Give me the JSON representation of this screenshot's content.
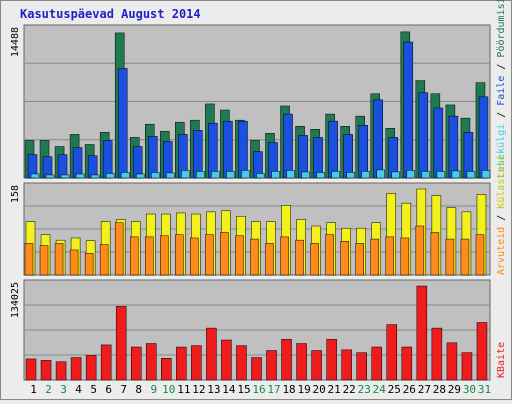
{
  "title": "Kasutuspäevad August 2014",
  "colors": {
    "pageBg": "#ececec",
    "plotBg": "#c0c0c0",
    "grid": "#888888",
    "title": "#1f1fc8",
    "hits": "#1f7a50",
    "files": "#1a4fe0",
    "pages": "#44ccee",
    "visits": "#f2f21a",
    "sites": "#ff8c1a",
    "kbytes": "#ee1c1c",
    "weekday": "#000000",
    "weekend": "#17864a"
  },
  "legend": {
    "hits": "Pöördumisi",
    "files": "Faile",
    "pages": "Lehekülgi",
    "visits": "Külastusi",
    "sites": "Arvuteid",
    "kbytes": "KBaite",
    "sep": " / "
  },
  "chart_data": [
    {
      "type": "bar",
      "name": "hits-files-pages",
      "x": [
        1,
        2,
        3,
        4,
        5,
        6,
        7,
        8,
        9,
        10,
        11,
        12,
        13,
        14,
        15,
        16,
        17,
        18,
        19,
        20,
        21,
        22,
        23,
        24,
        25,
        26,
        27,
        28,
        29,
        30,
        31
      ],
      "weekend_days": [
        2,
        3,
        9,
        10,
        16,
        17,
        23,
        24,
        30,
        31
      ],
      "ymax": 14488,
      "ytick_label": "14488",
      "series": [
        {
          "name": "Pöördumisi",
          "values": [
            3700,
            3700,
            3100,
            4300,
            3300,
            4500,
            14300,
            4000,
            5300,
            4600,
            5500,
            5700,
            7300,
            6700,
            5700,
            3700,
            4400,
            7100,
            5100,
            4800,
            6300,
            5100,
            6100,
            8300,
            4900,
            14400,
            9600,
            8300,
            7200,
            5900,
            9400
          ]
        },
        {
          "name": "Faile",
          "values": [
            2300,
            2100,
            2300,
            3000,
            2200,
            3700,
            10800,
            3100,
            4100,
            3600,
            4300,
            4700,
            5400,
            5600,
            5600,
            2600,
            3500,
            6300,
            4200,
            4000,
            5600,
            4300,
            5200,
            7700,
            4000,
            13400,
            8400,
            6900,
            6100,
            4500,
            8000
          ]
        },
        {
          "name": "Lehekülgi",
          "values": [
            400,
            300,
            300,
            400,
            300,
            450,
            550,
            400,
            550,
            500,
            750,
            650,
            650,
            650,
            750,
            450,
            650,
            750,
            600,
            550,
            650,
            550,
            650,
            800,
            600,
            750,
            650,
            650,
            700,
            650,
            750
          ]
        }
      ]
    },
    {
      "type": "bar",
      "name": "visits-sites",
      "x": [
        1,
        2,
        3,
        4,
        5,
        6,
        7,
        8,
        9,
        10,
        11,
        12,
        13,
        14,
        15,
        16,
        17,
        18,
        19,
        20,
        21,
        22,
        23,
        24,
        25,
        26,
        27,
        28,
        29,
        30,
        31
      ],
      "ymax": 158,
      "ytick_label": "158",
      "series": [
        {
          "name": "Külastusi",
          "values": [
            98,
            74,
            64,
            68,
            63,
            98,
            102,
            98,
            112,
            112,
            114,
            112,
            116,
            118,
            108,
            98,
            98,
            128,
            102,
            90,
            96,
            86,
            86,
            96,
            150,
            132,
            158,
            146,
            124,
            116,
            148
          ]
        },
        {
          "name": "Arvuteid",
          "values": [
            58,
            54,
            58,
            46,
            40,
            56,
            96,
            70,
            70,
            72,
            74,
            68,
            74,
            78,
            72,
            66,
            58,
            70,
            64,
            58,
            74,
            62,
            58,
            66,
            70,
            68,
            90,
            78,
            66,
            66,
            74
          ]
        }
      ]
    },
    {
      "type": "bar",
      "name": "kbytes",
      "x": [
        1,
        2,
        3,
        4,
        5,
        6,
        7,
        8,
        9,
        10,
        11,
        12,
        13,
        14,
        15,
        16,
        17,
        18,
        19,
        20,
        21,
        22,
        23,
        24,
        25,
        26,
        27,
        28,
        29,
        30,
        31
      ],
      "ymax": 134025,
      "ytick_label": "134025",
      "series": [
        {
          "name": "KBaite",
          "values": [
            30000,
            28000,
            26000,
            32000,
            35000,
            50000,
            105000,
            47000,
            52000,
            31000,
            47000,
            49000,
            74000,
            57000,
            49000,
            32000,
            42000,
            58000,
            52000,
            42000,
            58000,
            43000,
            39000,
            47000,
            79000,
            47000,
            134000,
            74000,
            53000,
            39000,
            82000
          ]
        }
      ]
    }
  ]
}
